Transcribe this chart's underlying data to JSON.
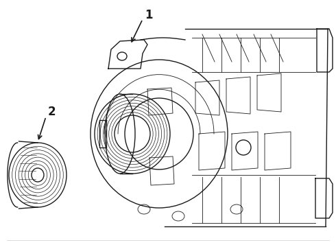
{
  "background_color": "#ffffff",
  "line_color": "#1a1a1a",
  "line_width": 1.0,
  "thin_lw": 0.6,
  "label1_text": "1",
  "label2_text": "2",
  "fig_width": 4.9,
  "fig_height": 3.6,
  "dpi": 100
}
